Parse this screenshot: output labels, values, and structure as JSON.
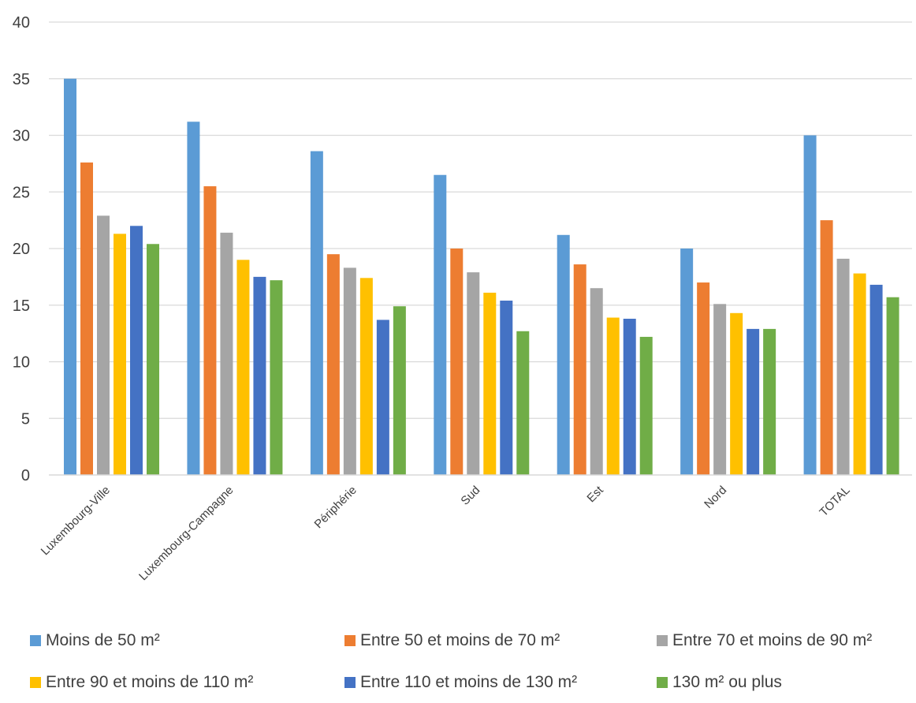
{
  "chart_data": {
    "type": "bar",
    "title": "",
    "xlabel": "",
    "ylabel": "",
    "ylim": [
      0,
      40
    ],
    "yticks": [
      0,
      5,
      10,
      15,
      20,
      25,
      30,
      35,
      40
    ],
    "grid": "horizontal",
    "legend_position": "bottom",
    "categories": [
      "Luxembourg-Ville",
      "Luxembourg-Campagne",
      "Périphérie",
      "Sud",
      "Est",
      "Nord",
      "TOTAL"
    ],
    "series": [
      {
        "name": "Moins de 50 m²",
        "color": "#5B9BD5",
        "values": [
          35.0,
          31.2,
          28.6,
          26.5,
          21.2,
          20.0,
          30.0
        ]
      },
      {
        "name": "Entre 50 et moins de 70 m²",
        "color": "#ED7D31",
        "values": [
          27.6,
          25.5,
          19.5,
          20.0,
          18.6,
          17.0,
          22.5
        ]
      },
      {
        "name": "Entre 70 et moins de 90 m²",
        "color": "#A5A5A5",
        "values": [
          22.9,
          21.4,
          18.3,
          17.9,
          16.5,
          15.1,
          19.1
        ]
      },
      {
        "name": "Entre 90 et moins de 110 m²",
        "color": "#FFC000",
        "values": [
          21.3,
          19.0,
          17.4,
          16.1,
          13.9,
          14.3,
          17.8
        ]
      },
      {
        "name": "Entre 110 et moins de 130 m²",
        "color": "#4472C4",
        "values": [
          22.0,
          17.5,
          13.7,
          15.4,
          13.8,
          12.9,
          16.8
        ]
      },
      {
        "name": "130 m² ou plus",
        "color": "#70AD47",
        "values": [
          20.4,
          17.2,
          14.9,
          12.7,
          12.2,
          12.9,
          15.7
        ]
      }
    ]
  }
}
